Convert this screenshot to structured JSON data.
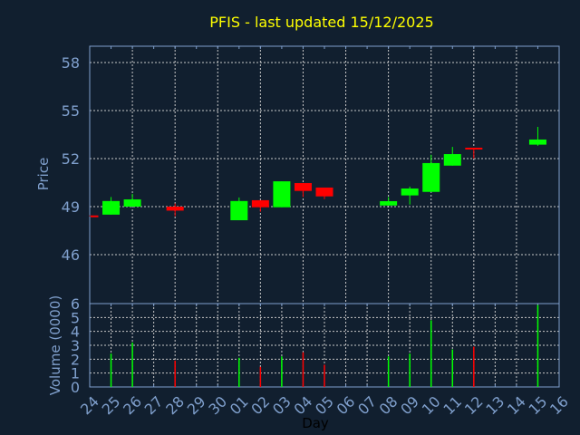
{
  "chart_data": [
    {
      "type": "candlestick",
      "title": "PFIS - last updated 15/12/2025",
      "ylabel": "Price",
      "xlabel": "Day",
      "ylim": [
        47,
        59
      ],
      "yticks": [
        46,
        49,
        52,
        55,
        58
      ],
      "ytick_labels": [
        "46",
        "49",
        "52",
        "55",
        "58"
      ],
      "grid": true,
      "days": [
        "24",
        "25",
        "26",
        "27",
        "28",
        "29",
        "30",
        "01",
        "02",
        "03",
        "04",
        "05",
        "06",
        "07",
        "08",
        "09",
        "10",
        "11",
        "12",
        "13",
        "14",
        "15",
        "16"
      ],
      "candles": [
        {
          "day": "24",
          "open": 48.45,
          "high": 48.45,
          "low": 48.4,
          "close": 48.4
        },
        {
          "day": "25",
          "open": 48.5,
          "high": 49.6,
          "low": 48.5,
          "close": 49.35
        },
        {
          "day": "26",
          "open": 49.0,
          "high": 49.8,
          "low": 49.0,
          "close": 49.45
        },
        {
          "day": "28",
          "open": 49.0,
          "high": 49.2,
          "low": 48.4,
          "close": 48.75
        },
        {
          "day": "01",
          "open": 48.15,
          "high": 49.57,
          "low": 48.15,
          "close": 49.35
        },
        {
          "day": "02",
          "open": 49.4,
          "high": 49.4,
          "low": 48.68,
          "close": 48.96
        },
        {
          "day": "03",
          "open": 48.96,
          "high": 50.58,
          "low": 48.96,
          "close": 50.58
        },
        {
          "day": "04",
          "open": 50.47,
          "high": 50.47,
          "low": 49.6,
          "close": 49.98
        },
        {
          "day": "05",
          "open": 50.19,
          "high": 50.19,
          "low": 49.47,
          "close": 49.64
        },
        {
          "day": "08",
          "open": 49.07,
          "high": 49.6,
          "low": 49.07,
          "close": 49.34
        },
        {
          "day": "09",
          "open": 49.7,
          "high": 50.25,
          "low": 49.13,
          "close": 50.13
        },
        {
          "day": "10",
          "open": 49.92,
          "high": 52.24,
          "low": 49.92,
          "close": 51.72
        },
        {
          "day": "11",
          "open": 51.56,
          "high": 52.73,
          "low": 51.56,
          "close": 52.28
        },
        {
          "day": "12",
          "open": 52.68,
          "high": 52.68,
          "low": 52.0,
          "close": 52.6
        },
        {
          "day": "15",
          "open": 52.87,
          "high": 53.98,
          "low": 52.8,
          "close": 53.19
        }
      ]
    },
    {
      "type": "bar",
      "ylabel": "Volume (0000)",
      "xlabel": "Day",
      "ylim": [
        0,
        6
      ],
      "yticks": [
        "0",
        "1",
        "2",
        "3",
        "4",
        "5",
        "6"
      ],
      "grid": true,
      "bars": [
        {
          "day": "25",
          "value": 2.4,
          "up": true
        },
        {
          "day": "26",
          "value": 3.2,
          "up": true
        },
        {
          "day": "28",
          "value": 1.9,
          "up": false
        },
        {
          "day": "01",
          "value": 2.1,
          "up": true
        },
        {
          "day": "02",
          "value": 1.45,
          "up": false
        },
        {
          "day": "03",
          "value": 2.2,
          "up": true
        },
        {
          "day": "04",
          "value": 2.5,
          "up": false
        },
        {
          "day": "05",
          "value": 1.6,
          "up": false
        },
        {
          "day": "08",
          "value": 2.2,
          "up": true
        },
        {
          "day": "09",
          "value": 2.4,
          "up": true
        },
        {
          "day": "10",
          "value": 4.8,
          "up": true
        },
        {
          "day": "11",
          "value": 2.7,
          "up": true
        },
        {
          "day": "12",
          "value": 2.9,
          "up": false
        },
        {
          "day": "15",
          "value": 5.9,
          "up": true
        }
      ]
    }
  ],
  "colors": {
    "background": "#111f2f",
    "axis": "#7f9fcc",
    "grid": "#c8c8c8",
    "up": "#00ff00",
    "down": "#ff0000",
    "title": "#ffff00",
    "xlabel": "#000000"
  }
}
